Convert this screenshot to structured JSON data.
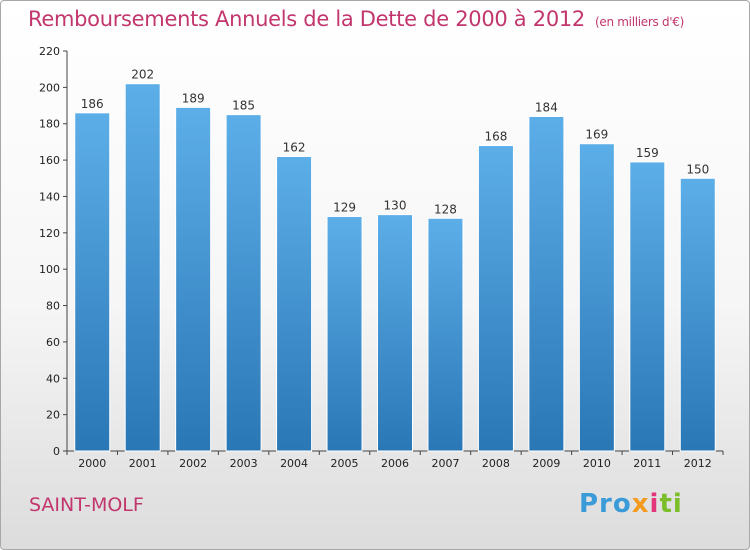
{
  "header": {
    "title": "Remboursements Annuels de la Dette de 2000 à 2012",
    "unit": "(en milliers d'€)"
  },
  "footer": {
    "commune": "SAINT-MOLF",
    "logo": [
      "Pro",
      "x",
      "i",
      "ti"
    ]
  },
  "chart_data": {
    "type": "bar",
    "title": "Remboursements Annuels de la Dette de 2000 à 2012",
    "subtitle": "(en milliers d'€)",
    "categories": [
      "2000",
      "2001",
      "2002",
      "2003",
      "2004",
      "2005",
      "2006",
      "2007",
      "2008",
      "2009",
      "2010",
      "2011",
      "2012"
    ],
    "values": [
      186,
      202,
      189,
      185,
      162,
      129,
      130,
      128,
      168,
      184,
      169,
      159,
      150
    ],
    "yticks": [
      0,
      20,
      40,
      60,
      80,
      100,
      120,
      140,
      160,
      180,
      200,
      220
    ],
    "ylim": [
      0,
      220
    ],
    "grid": false,
    "colors": {
      "bar_top": "#5caee8",
      "bar_bottom": "#2a77b6",
      "title": "#c2366e"
    }
  }
}
